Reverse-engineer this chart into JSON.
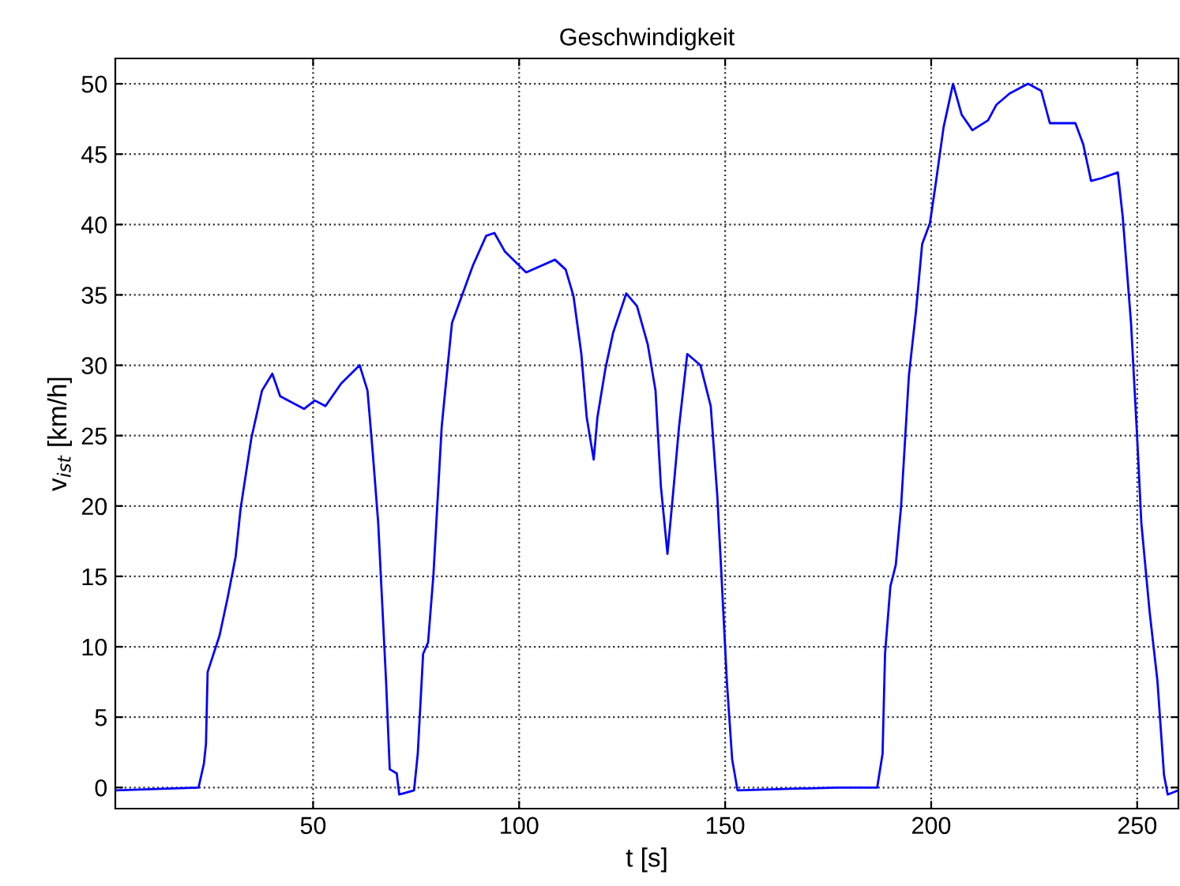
{
  "chart_data": {
    "type": "line",
    "title": "Geschwindigkeit",
    "xlabel": "t [s]",
    "ylabel": "v$_{ist}$ [km/h]",
    "xlim": [
      2,
      260
    ],
    "ylim": [
      -1.5,
      51.8
    ],
    "xticks": [
      50,
      100,
      150,
      200,
      250
    ],
    "yticks": [
      0,
      5,
      10,
      15,
      20,
      25,
      30,
      35,
      40,
      45,
      50
    ],
    "grid": true,
    "line_style": "solid",
    "marker": "none",
    "series": [
      {
        "color": "#0000ff",
        "x": [
          2.3,
          22.2,
          23.5,
          24,
          24.4,
          27.3,
          29.2,
          31.2,
          32.4,
          35,
          37.6,
          40.1,
          42,
          47.8,
          50.4,
          53,
          56.8,
          61.3,
          63.2,
          64.5,
          65.8,
          66.8,
          67.7,
          68.6,
          70.3,
          70.9,
          74.5,
          75.4,
          76.7,
          77.9,
          79.2,
          81.2,
          82.2,
          83.7,
          86.3,
          88.8,
          92,
          94,
          96.5,
          101.7,
          108.7,
          111.3,
          113.2,
          115.1,
          116.4,
          118.1,
          119,
          120.9,
          122.8,
          126,
          128.6,
          131.2,
          133.1,
          134.4,
          136,
          137.3,
          138.8,
          140.8,
          144,
          146.5,
          148.1,
          149.1,
          150.4,
          151.7,
          153,
          177.3,
          186.9,
          188.2,
          188.8,
          190.1,
          191.4,
          192.7,
          194.6,
          196.3,
          197.8,
          199.7,
          201,
          203,
          205.3,
          207.4,
          210,
          213.8,
          215.8,
          219,
          223.5,
          226.7,
          228.8,
          235,
          236.9,
          238.8,
          241.4,
          245.3,
          246.5,
          248.5,
          250,
          251,
          253,
          254.9,
          256.5,
          257.4,
          260
        ],
        "values": [
          -0.2,
          0,
          1.7,
          3.1,
          8.2,
          10.8,
          13.4,
          16.4,
          19.8,
          24.8,
          28.2,
          29.4,
          27.8,
          26.9,
          27.5,
          27.1,
          28.7,
          30,
          28.2,
          23.7,
          18.8,
          12.9,
          7.6,
          1.3,
          1,
          -0.5,
          -0.2,
          2.4,
          9.5,
          10.3,
          15.1,
          25.6,
          28.6,
          33,
          35.1,
          37.1,
          39.2,
          39.4,
          38.1,
          36.6,
          37.5,
          36.8,
          34.9,
          30.8,
          26.3,
          23.3,
          26.3,
          29.7,
          32.3,
          35.1,
          34.2,
          31.5,
          28.2,
          21.4,
          16.6,
          20.7,
          25.6,
          30.8,
          30,
          27.1,
          20.7,
          15.1,
          7.6,
          2,
          -0.2,
          0,
          0,
          2.4,
          9.5,
          14.3,
          15.8,
          20,
          29.3,
          33.8,
          38.6,
          40.1,
          42.7,
          46.9,
          50,
          47.8,
          46.7,
          47.4,
          48.5,
          49.3,
          50,
          49.5,
          47.2,
          47.2,
          45.7,
          43.1,
          43.3,
          43.7,
          40.5,
          33,
          24.8,
          18.8,
          12.5,
          7.6,
          0.9,
          -0.5,
          -0.2
        ]
      }
    ]
  }
}
